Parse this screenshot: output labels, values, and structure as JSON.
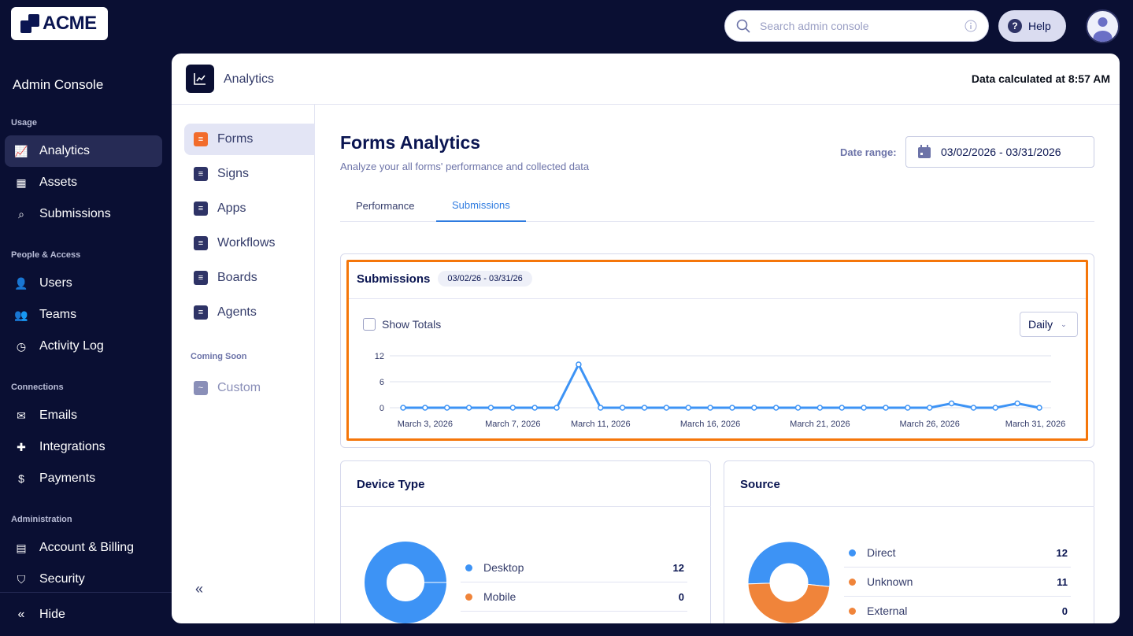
{
  "brand": {
    "logo_text": "ACME"
  },
  "sidebar": {
    "title": "Admin Console",
    "sections": [
      {
        "label": "Usage",
        "items": [
          {
            "label": "Analytics",
            "icon": "chart-line-icon",
            "active": true
          },
          {
            "label": "Assets",
            "icon": "grid-icon"
          },
          {
            "label": "Submissions",
            "icon": "search-icon"
          }
        ]
      },
      {
        "label": "People & Access",
        "items": [
          {
            "label": "Users",
            "icon": "user-icon"
          },
          {
            "label": "Teams",
            "icon": "team-icon"
          },
          {
            "label": "Activity Log",
            "icon": "history-icon"
          }
        ]
      },
      {
        "label": "Connections",
        "items": [
          {
            "label": "Emails",
            "icon": "mail-icon"
          },
          {
            "label": "Integrations",
            "icon": "puzzle-icon"
          },
          {
            "label": "Payments",
            "icon": "dollar-icon"
          }
        ]
      },
      {
        "label": "Administration",
        "items": [
          {
            "label": "Account & Billing",
            "icon": "id-card-icon"
          },
          {
            "label": "Security",
            "icon": "shield-icon"
          }
        ]
      }
    ],
    "hide_label": "Hide"
  },
  "topbar": {
    "search_placeholder": "Search admin console",
    "help_label": "Help"
  },
  "header": {
    "title": "Analytics",
    "calculated": "Data calculated at 8:57 AM"
  },
  "subnav": {
    "items": [
      {
        "label": "Forms",
        "color": "#f26c2b",
        "active": true
      },
      {
        "label": "Signs"
      },
      {
        "label": "Apps"
      },
      {
        "label": "Workflows"
      },
      {
        "label": "Boards"
      },
      {
        "label": "Agents"
      }
    ],
    "coming_soon_label": "Coming Soon",
    "coming_soon_items": [
      {
        "label": "Custom"
      }
    ],
    "collapse_icon": "chevrons-left-icon"
  },
  "main": {
    "title": "Forms Analytics",
    "subtitle": "Analyze your all forms' performance and collected data",
    "date_range_label": "Date range:",
    "date_range_value": "03/02/2026 - 03/31/2026",
    "tabs": [
      {
        "label": "Performance"
      },
      {
        "label": "Submissions",
        "active": true
      }
    ]
  },
  "submissions_card": {
    "title": "Submissions",
    "range_badge": "03/02/26 - 03/31/26",
    "show_totals_label": "Show Totals",
    "show_totals_checked": false,
    "interval": "Daily",
    "highlight_color": "#f5760a"
  },
  "chart_data": [
    {
      "type": "line",
      "title": "Submissions",
      "x_tick_labels": [
        "March 3, 2026",
        "March 7, 2026",
        "March 11, 2026",
        "March 16, 2026",
        "March 21, 2026",
        "March 26, 2026",
        "March 31, 2026"
      ],
      "x": [
        "2026-03-02",
        "2026-03-03",
        "2026-03-04",
        "2026-03-05",
        "2026-03-06",
        "2026-03-07",
        "2026-03-08",
        "2026-03-09",
        "2026-03-10",
        "2026-03-11",
        "2026-03-12",
        "2026-03-13",
        "2026-03-14",
        "2026-03-15",
        "2026-03-16",
        "2026-03-17",
        "2026-03-18",
        "2026-03-19",
        "2026-03-20",
        "2026-03-21",
        "2026-03-22",
        "2026-03-23",
        "2026-03-24",
        "2026-03-25",
        "2026-03-26",
        "2026-03-27",
        "2026-03-28",
        "2026-03-29",
        "2026-03-30",
        "2026-03-31"
      ],
      "values": [
        0,
        0,
        0,
        0,
        0,
        0,
        0,
        0,
        10,
        0,
        0,
        0,
        0,
        0,
        0,
        0,
        0,
        0,
        0,
        0,
        0,
        0,
        0,
        0,
        0,
        1,
        0,
        0,
        1,
        0
      ],
      "y_ticks": [
        0,
        6,
        12
      ],
      "ylim": [
        0,
        12
      ],
      "grid": true,
      "color": "#3d93f5"
    },
    {
      "type": "pie",
      "title": "Device Type",
      "donut": true,
      "slices": [
        {
          "label": "Desktop",
          "value": 12,
          "color": "#3d93f5"
        },
        {
          "label": "Mobile",
          "value": 0,
          "color": "#f0843a"
        }
      ]
    },
    {
      "type": "pie",
      "title": "Source",
      "donut": true,
      "slices": [
        {
          "label": "Direct",
          "value": 12,
          "color": "#3d93f5"
        },
        {
          "label": "Unknown",
          "value": 11,
          "color": "#f0843a"
        },
        {
          "label": "External",
          "value": 0,
          "color": "#f0843a"
        }
      ]
    }
  ]
}
